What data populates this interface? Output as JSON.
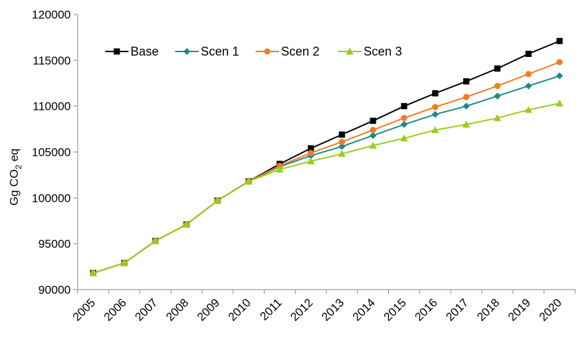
{
  "chart_data": {
    "type": "line",
    "x": [
      "2005",
      "2006",
      "2007",
      "2008",
      "2009",
      "2010",
      "2011",
      "2012",
      "2013",
      "2014",
      "2015",
      "2016",
      "2017",
      "2018",
      "2019",
      "2020"
    ],
    "ylabel": "Gg CO",
    "ylabel_sub": "2",
    "ylabel_suffix": " eq",
    "ylim": [
      90000,
      120000
    ],
    "yticks": [
      90000,
      95000,
      100000,
      105000,
      110000,
      115000,
      120000
    ],
    "grid": false,
    "legend": "top-left",
    "series": [
      {
        "name": "Base",
        "color": "#000000",
        "marker": "square",
        "values": [
          91800,
          92900,
          95300,
          97100,
          99700,
          101800,
          103700,
          105400,
          106900,
          108400,
          110000,
          111400,
          112700,
          114100,
          115700,
          117100
        ]
      },
      {
        "name": "Scen 1",
        "color": "#1a8a8a",
        "marker": "diamond",
        "values": [
          91800,
          92900,
          95300,
          97100,
          99700,
          101800,
          103400,
          104600,
          105600,
          106800,
          108000,
          109100,
          110000,
          111100,
          112200,
          113300
        ]
      },
      {
        "name": "Scen 2",
        "color": "#f47b20",
        "marker": "circle",
        "values": [
          91800,
          92900,
          95300,
          97100,
          99700,
          101800,
          103500,
          104900,
          106100,
          107400,
          108700,
          109900,
          111000,
          112200,
          113500,
          114800
        ]
      },
      {
        "name": "Scen 3",
        "color": "#9acd1a",
        "marker": "triangle",
        "values": [
          91800,
          92900,
          95300,
          97100,
          99700,
          101800,
          103100,
          104000,
          104800,
          105700,
          106500,
          107400,
          108000,
          108700,
          109600,
          110300
        ]
      }
    ]
  }
}
